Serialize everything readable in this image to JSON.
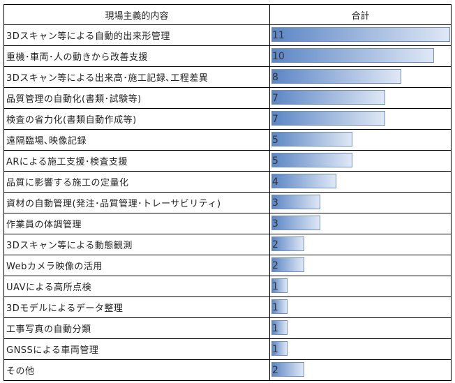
{
  "chart_data": {
    "type": "table",
    "columns": [
      "現場主義的内容",
      "合計"
    ],
    "categories": [
      "3Dスキャン等による自動的出来形管理",
      "重機･車両･人の動きから改善支援",
      "3Dスキャン等による出来高･施工記録､工程差異",
      "品質管理の自動化(書類･試験等)",
      "検査の省力化(書類自動作成等)",
      "遠隔臨場､映像記録",
      "ARによる施工支援･検査支援",
      "品質に影響する施工の定量化",
      "資材の自動管理(発注･品質管理･トレーサビリティ)",
      "作業員の体調管理",
      "3Dスキャン等による動態観測",
      "Webカメラ映像の活用",
      "UAVによる高所点検",
      "3Dモデルによるデータ整理",
      "工事写真の自動分類",
      "GNSSによる車両管理",
      "その他"
    ],
    "values": [
      11,
      10,
      8,
      7,
      7,
      5,
      5,
      4,
      3,
      3,
      2,
      2,
      1,
      1,
      1,
      1,
      2
    ],
    "bar_style": "gradient data bars",
    "bar_color": "#5b86c5",
    "bar_border_color": "#6f8fc2",
    "value_max": 11
  }
}
